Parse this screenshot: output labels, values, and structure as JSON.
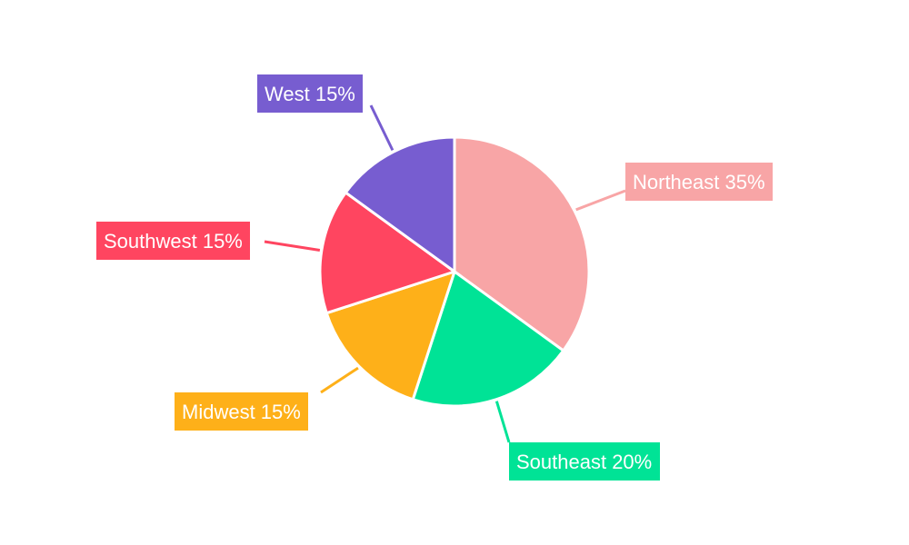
{
  "chart_data": {
    "type": "pie",
    "slices": [
      {
        "label": "Northeast",
        "value": 35,
        "display": "Northeast 35%",
        "color": "#F8A5A6"
      },
      {
        "label": "Southeast",
        "value": 20,
        "display": "Southeast 20%",
        "color": "#00E396"
      },
      {
        "label": "Midwest",
        "value": 15,
        "display": "Midwest 15%",
        "color": "#FEB019"
      },
      {
        "label": "Southwest",
        "value": 15,
        "display": "Southwest 15%",
        "color": "#FF4560"
      },
      {
        "label": "West",
        "value": 15,
        "display": "West 15%",
        "color": "#775DD0"
      }
    ],
    "start_angle_deg": 0,
    "direction": "clockwise",
    "legend": "none",
    "slice_border_color": "#ffffff"
  }
}
